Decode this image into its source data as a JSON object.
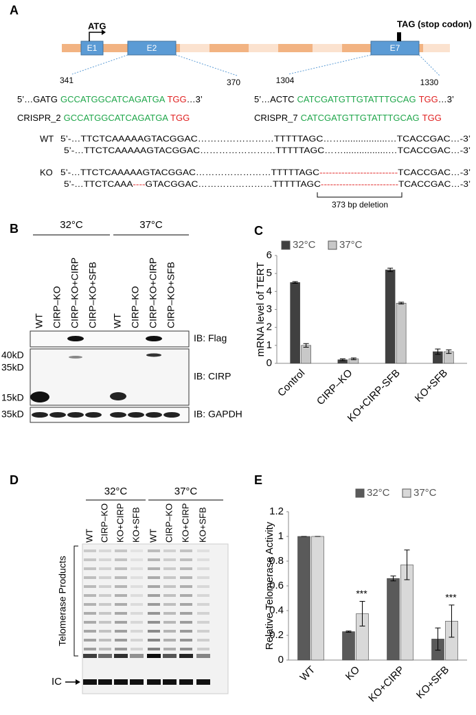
{
  "panels": {
    "A": {
      "label": "A",
      "start_codon": "ATG",
      "stop_codon": "TAG (stop codon)",
      "exons": [
        "E1",
        "E2",
        "E7"
      ],
      "positions": [
        341,
        370,
        1304,
        1330
      ],
      "targets": [
        {
          "prefix": "5’…GATG",
          "guide": "GCCATGGCATCAGATGA",
          "pam": "TGG",
          "suffix": "…3’"
        },
        {
          "prefix": "5’…ACTC",
          "guide": "CATCGATGTTGTATTTGCAG",
          "pam": "TGG",
          "suffix": "…3’"
        }
      ],
      "crispr": [
        {
          "name": "CRISPR_2",
          "guide": "GCCATGGCATCAGATGA",
          "pam": "TGG"
        },
        {
          "name": "CRISPR_7",
          "guide": "CATCGATGTTGTATTTGCAG",
          "pam": "TGG"
        }
      ],
      "alleles": [
        {
          "name": "WT",
          "lines": [
            [
              {
                "text": "5’-…TTCTCAAAAAGTACGGAC……………………TTTTTAGC…….................…TCACCGAC…-3’",
                "color": "#000000"
              }
            ],
            [
              {
                "text": "5’-…TTCTCAAAAAGTACGGAC……………………TTTTTAGC…….................…TCACCGAC…-3’",
                "color": "#000000"
              }
            ]
          ]
        },
        {
          "name": "KO",
          "lines": [
            [
              {
                "text": "5’-…TTCTCAAAAAGTACGGAC……………………TTTTTAGC",
                "color": "#000000"
              },
              {
                "text": "-------------------------",
                "color": "#e02020"
              },
              {
                "text": "TCACCGAC…-3’",
                "color": "#000000"
              }
            ],
            [
              {
                "text": "5’-…TTCTCAAA",
                "color": "#000000"
              },
              {
                "text": "----",
                "color": "#e02020"
              },
              {
                "text": "GTACGGAC……………………TTTTTAGC",
                "color": "#000000"
              },
              {
                "text": "-------------------------",
                "color": "#e02020"
              },
              {
                "text": "TCACCGAC…-3’",
                "color": "#000000"
              }
            ]
          ]
        }
      ],
      "deletion": "373 bp deletion"
    },
    "B": {
      "label": "B",
      "temps": [
        "32°C",
        "37°C"
      ],
      "lanes": [
        "WT",
        "CIRP–KO",
        "CIRP–KO+CIRP",
        "CIRP–KO+SFB"
      ],
      "markers": [
        "40kD",
        "35kD",
        "15kD",
        "35kD"
      ],
      "blots": [
        "IB: Flag",
        "IB: CIRP",
        "IB: GAPDH"
      ]
    },
    "D": {
      "label": "D",
      "temps": [
        "32°C",
        "37°C"
      ],
      "lanes": [
        "WT",
        "CIRP–KO",
        "KO+CIRP",
        "KO+SFB"
      ],
      "products": "Telomerase Products",
      "ic": "IC"
    }
  },
  "chart_data": [
    {
      "type": "bar",
      "panel_label": "C",
      "y_label": "mRNA level of TERT",
      "categories": [
        "Control",
        "CIRP–KO",
        "KO+CIRP-SFB",
        "KO+SFB"
      ],
      "series": [
        {
          "name": "32°C",
          "color": "#404040",
          "values": [
            4.5,
            0.2,
            5.2,
            0.65
          ],
          "errors": [
            0.05,
            0.05,
            0.1,
            0.15
          ]
        },
        {
          "name": "37°C",
          "color": "#c8c8c8",
          "values": [
            1.0,
            0.25,
            3.35,
            0.65
          ],
          "errors": [
            0.1,
            0.05,
            0.05,
            0.1
          ]
        }
      ],
      "ylim": [
        0,
        6
      ],
      "yticks": [
        0,
        1,
        2,
        3,
        4,
        5,
        6
      ],
      "grid": false,
      "legend": "top"
    },
    {
      "type": "bar",
      "panel_label": "E",
      "y_label": "Relative Telomerase Activity",
      "categories": [
        "WT",
        "KO",
        "KO+CIRP",
        "KO+SFB"
      ],
      "series": [
        {
          "name": "32°C",
          "color": "#5a5a5a",
          "values": [
            1,
            0.23,
            0.66,
            0.17
          ],
          "errors": [
            0,
            0.005,
            0.02,
            0.09
          ]
        },
        {
          "name": "37°C",
          "color": "#d9d9d9",
          "values": [
            1,
            0.375,
            0.77,
            0.315
          ],
          "errors": [
            0,
            0.1,
            0.12,
            0.13
          ]
        }
      ],
      "significance": [
        null,
        "***",
        null,
        "***"
      ],
      "ylim": [
        0,
        1.2
      ],
      "yticks": [
        0,
        0.2,
        0.4,
        0.6,
        0.8,
        1,
        1.2
      ],
      "grid": false,
      "legend": "top"
    }
  ]
}
